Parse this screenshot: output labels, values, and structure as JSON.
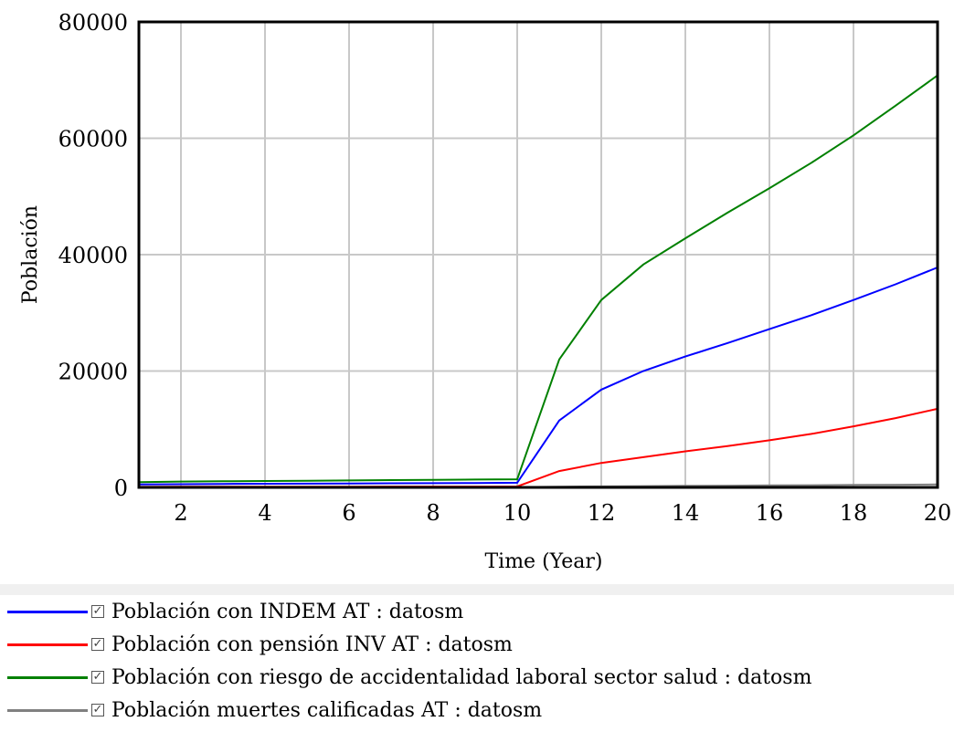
{
  "chart_data": {
    "type": "line",
    "xlabel": "Time (Year)",
    "ylabel": "Población",
    "xlim": [
      1,
      20
    ],
    "ylim": [
      0,
      80000
    ],
    "xticks": [
      2,
      4,
      6,
      8,
      10,
      12,
      14,
      16,
      18,
      20
    ],
    "yticks": [
      0,
      20000,
      40000,
      60000,
      80000
    ],
    "grid": true,
    "legend_position": "bottom",
    "x": [
      1,
      2,
      3,
      4,
      5,
      6,
      7,
      8,
      9,
      10,
      11,
      12,
      13,
      14,
      15,
      16,
      17,
      18,
      19,
      20
    ],
    "series": [
      {
        "name": "Población con INDEM AT : datosm",
        "color": "#0000ff",
        "values": [
          500,
          550,
          600,
          620,
          650,
          670,
          700,
          720,
          750,
          800,
          11500,
          16800,
          20000,
          22500,
          24800,
          27200,
          29600,
          32200,
          34900,
          37800
        ]
      },
      {
        "name": "Población con pensión INV AT : datosm",
        "color": "#ff0000",
        "values": [
          100,
          110,
          115,
          120,
          125,
          130,
          135,
          140,
          145,
          150,
          2800,
          4200,
          5200,
          6200,
          7100,
          8100,
          9200,
          10500,
          11900,
          13500
        ]
      },
      {
        "name": "Población con riesgo de accidentalidad laboral sector salud : datosm",
        "color": "#008000",
        "values": [
          900,
          1000,
          1050,
          1100,
          1150,
          1200,
          1250,
          1300,
          1350,
          1400,
          22000,
          32200,
          38300,
          42800,
          47200,
          51400,
          55800,
          60500,
          65600,
          70800
        ]
      },
      {
        "name": "Población muertes calificadas AT : datosm",
        "color": "#808080",
        "values": [
          20,
          22,
          24,
          25,
          26,
          27,
          28,
          29,
          30,
          30,
          120,
          180,
          220,
          260,
          300,
          340,
          380,
          420,
          460,
          500
        ]
      }
    ]
  },
  "legend": {
    "check_symbol": "✓"
  }
}
